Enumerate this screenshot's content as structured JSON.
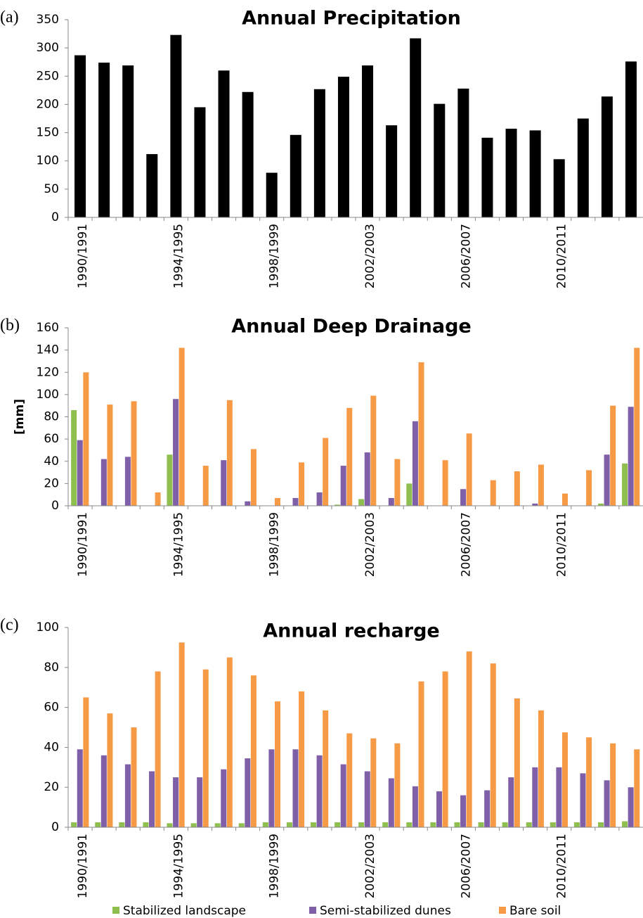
{
  "chart_data": [
    {
      "type": "bar",
      "panel_label": "(a)",
      "title": "Annual Precipitation",
      "categories": [
        "1990/1991",
        null,
        null,
        null,
        "1994/1995",
        null,
        null,
        null,
        "1998/1999",
        null,
        null,
        null,
        "2002/2003",
        null,
        null,
        null,
        "2006/2007",
        null,
        null,
        null,
        "2010/2011",
        null,
        null,
        null
      ],
      "values": [
        287,
        274,
        269,
        112,
        323,
        195,
        260,
        222,
        79,
        146,
        227,
        249,
        269,
        163,
        317,
        201,
        228,
        141,
        157,
        154,
        103,
        175,
        214,
        276
      ],
      "color": "#000000",
      "ylim": [
        0,
        350
      ],
      "yticks": [
        0,
        50,
        100,
        150,
        200,
        250,
        300,
        350
      ]
    },
    {
      "type": "grouped_bar",
      "panel_label": "(b)",
      "title": "Annual Deep Drainage",
      "y_label": "[mm]",
      "categories": [
        "1990/1991",
        null,
        null,
        null,
        "1994/1995",
        null,
        null,
        null,
        "1998/1999",
        null,
        null,
        null,
        "2002/2003",
        null,
        null,
        null,
        "2006/2007",
        null,
        null,
        null,
        "2010/2011",
        null,
        null,
        null
      ],
      "series": [
        {
          "color": "#8fbf4f",
          "values": [
            86,
            0,
            0,
            0,
            46,
            0,
            0,
            0,
            0,
            0,
            0,
            1,
            6,
            0,
            20,
            0,
            0,
            0,
            0,
            0,
            0,
            0,
            2,
            38
          ]
        },
        {
          "color": "#7f5fa8",
          "values": [
            59,
            42,
            44,
            0,
            96,
            0,
            41,
            4,
            0,
            7,
            12,
            36,
            48,
            7,
            76,
            0,
            15,
            0,
            0,
            2,
            0,
            0,
            46,
            89
          ]
        },
        {
          "color": "#f79a46",
          "values": [
            120,
            91,
            94,
            12,
            142,
            36,
            95,
            51,
            7,
            39,
            61,
            88,
            99,
            42,
            129,
            41,
            65,
            23,
            31,
            37,
            11,
            32,
            90,
            142
          ]
        }
      ],
      "ylim": [
        0,
        160
      ],
      "yticks": [
        0,
        20,
        40,
        60,
        80,
        100,
        120,
        140,
        160
      ]
    },
    {
      "type": "grouped_bar",
      "panel_label": "(c)",
      "title": "Annual recharge",
      "categories": [
        "1990/1991",
        null,
        null,
        null,
        "1994/1995",
        null,
        null,
        null,
        "1998/1999",
        null,
        null,
        null,
        "2002/2003",
        null,
        null,
        null,
        "2006/2007",
        null,
        null,
        null,
        "2010/2011",
        null,
        null,
        null
      ],
      "series": [
        {
          "name": "Stabilized landscape",
          "color": "#8fbf4f",
          "values": [
            2.5,
            2.5,
            2.5,
            2.5,
            2,
            2,
            2,
            2,
            2.5,
            2.5,
            2.5,
            2.5,
            2.5,
            2.5,
            2.5,
            2.5,
            2.5,
            2.5,
            2.5,
            2.5,
            2.5,
            2.5,
            2.5,
            3
          ]
        },
        {
          "name": "Semi-stabilized dunes",
          "color": "#7f5fa8",
          "values": [
            39,
            36,
            31.5,
            28,
            25,
            25,
            29,
            34.5,
            39,
            39,
            36,
            31.5,
            28,
            24.5,
            20.5,
            18,
            16,
            18.5,
            25,
            30,
            30,
            27,
            23.5,
            20
          ]
        },
        {
          "name": "Bare soil",
          "color": "#f79a46",
          "values": [
            65,
            57,
            50,
            78,
            92.5,
            79,
            85,
            76,
            63,
            68,
            58.5,
            47,
            44.5,
            42,
            73,
            78,
            88,
            82,
            64.5,
            58.5,
            47.5,
            45,
            42,
            39
          ]
        }
      ],
      "ylim": [
        0,
        100
      ],
      "yticks": [
        0,
        20,
        40,
        60,
        80,
        100
      ],
      "legend": "bottom"
    }
  ]
}
